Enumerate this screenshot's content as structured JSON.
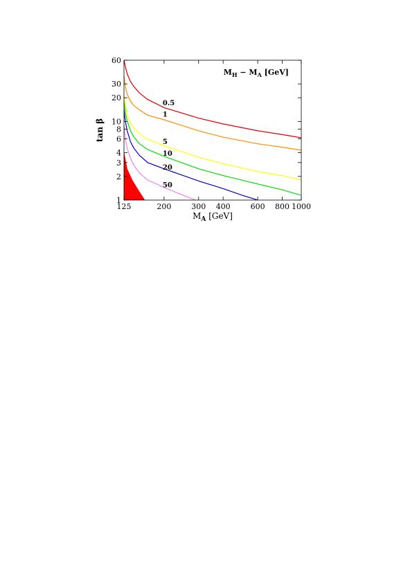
{
  "chart_data": {
    "type": "line",
    "title": "M_H − M_A [GeV]",
    "title_parts": {
      "m1": "M",
      "s1": "H",
      "minus": " − ",
      "m2": "M",
      "s2": "A",
      "unit": " [GeV]"
    },
    "xlabel": "M_A [GeV]",
    "xlabel_parts": {
      "m": "M",
      "s": "A",
      "unit": " [GeV]"
    },
    "ylabel": "tan β",
    "xscale": "log",
    "yscale": "log",
    "xlim": [
      125,
      1000
    ],
    "ylim": [
      1,
      60
    ],
    "grid": false,
    "legend_placement": "top-right",
    "x_ticks": [
      125,
      200,
      300,
      400,
      600,
      800,
      1000
    ],
    "x_tick_labels": [
      "125",
      "200",
      "300",
      "400",
      "600",
      "800",
      "1000"
    ],
    "y_ticks": [
      1,
      2,
      3,
      4,
      6,
      8,
      10,
      20,
      30,
      60
    ],
    "y_tick_labels": [
      "1",
      "2",
      "3",
      "4",
      "6",
      "8",
      "10",
      "20",
      "30",
      "60"
    ],
    "excluded_region": {
      "color": "#ff0000",
      "points": [
        [
          125,
          1
        ],
        [
          125,
          4.2
        ],
        [
          130,
          2.5
        ],
        [
          138,
          1.8
        ],
        [
          148,
          1.35
        ],
        [
          160,
          1.0
        ]
      ]
    },
    "series": [
      {
        "label": "0.5",
        "color": "#dd0000",
        "x": [
          125,
          127,
          130,
          135,
          140,
          150,
          165,
          200,
          300,
          400,
          600,
          800,
          1000
        ],
        "y": [
          60,
          50,
          40,
          32,
          28,
          23,
          19,
          15,
          11,
          9.3,
          7.6,
          6.8,
          6.2
        ],
        "label_at": [
          200,
          17
        ]
      },
      {
        "label": "1",
        "color": "#ff8c00",
        "x": [
          125,
          127,
          130,
          135,
          140,
          150,
          165,
          200,
          300,
          400,
          600,
          800,
          1000
        ],
        "y": [
          38,
          28,
          22,
          18,
          16,
          14,
          12,
          10.5,
          7.6,
          6.3,
          5.2,
          4.7,
          4.3
        ],
        "label_at": [
          200,
          12.2
        ]
      },
      {
        "label": "5",
        "color": "#ffff00",
        "x": [
          125,
          127,
          130,
          135,
          140,
          150,
          165,
          200,
          300,
          400,
          600,
          800,
          1000
        ],
        "y": [
          22,
          16,
          12,
          9.5,
          8.3,
          7,
          5.9,
          4.9,
          3.5,
          2.9,
          2.3,
          2.05,
          1.8
        ],
        "label_at": [
          200,
          5.5
        ]
      },
      {
        "label": "10",
        "color": "#00dd00",
        "x": [
          125,
          127,
          130,
          135,
          140,
          150,
          165,
          200,
          300,
          400,
          600,
          800,
          1000
        ],
        "y": [
          18,
          13,
          10,
          7.6,
          6.4,
          5.2,
          4.4,
          3.6,
          2.5,
          2.05,
          1.6,
          1.35,
          1.15
        ],
        "label_at": [
          200,
          3.9
        ]
      },
      {
        "label": "20",
        "color": "#0000cc",
        "x": [
          125,
          127,
          130,
          135,
          140,
          150,
          165,
          200,
          300,
          400,
          500,
          600
        ],
        "y": [
          14,
          10,
          7.5,
          5.5,
          4.6,
          3.7,
          3.0,
          2.5,
          1.75,
          1.4,
          1.15,
          1.0
        ],
        "label_at": [
          200,
          2.6
        ]
      },
      {
        "label": "50",
        "color": "#ee82ee",
        "x": [
          125,
          127,
          130,
          135,
          140,
          150,
          165,
          200,
          250,
          290
        ],
        "y": [
          9,
          6,
          4.5,
          3.4,
          2.8,
          2.2,
          1.8,
          1.45,
          1.15,
          1.0
        ],
        "label_at": [
          200,
          1.55
        ]
      }
    ]
  }
}
